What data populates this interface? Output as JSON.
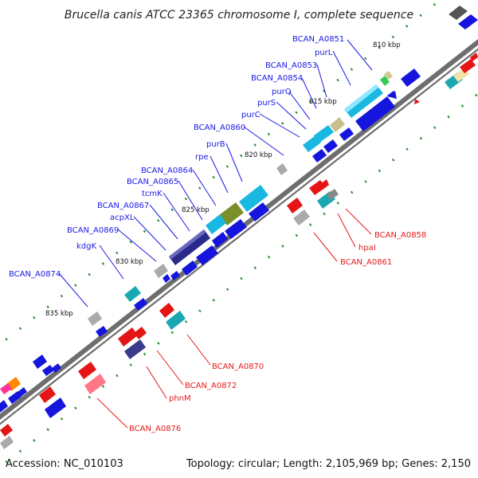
{
  "title": "Brucella canis ATCC 23365 chromosome I, complete sequence",
  "footer": {
    "accession": "Accession: NC_010103",
    "topology": "Topology: circular; Length: 2,105,969 bp; Genes: 2,150"
  },
  "scale": [
    "810 kbp",
    "815 kbp",
    "820 kbp",
    "825 kbp",
    "830 kbp",
    "835 kbp"
  ],
  "colors": {
    "forward_label": "#1a1ae6",
    "reverse_label": "#e61a1a",
    "backbone": "#6e6e6e"
  },
  "forward_labels": [
    "BCAN_A0851",
    "purL",
    "BCAN_A0853",
    "BCAN_A0854",
    "purQ",
    "purS",
    "purC",
    "BCAN_A0860",
    "purB",
    "rpe",
    "BCAN_A0864",
    "BCAN_A0865",
    "tcmK",
    "BCAN_A0867",
    "acpXL",
    "BCAN_A0869",
    "kdgK",
    "BCAN_A0874"
  ],
  "reverse_labels": [
    "BCAN_A0858",
    "hpaI",
    "BCAN_A0861",
    "BCAN_A0870",
    "BCAN_A0872",
    "phnM",
    "BCAN_A0876"
  ]
}
